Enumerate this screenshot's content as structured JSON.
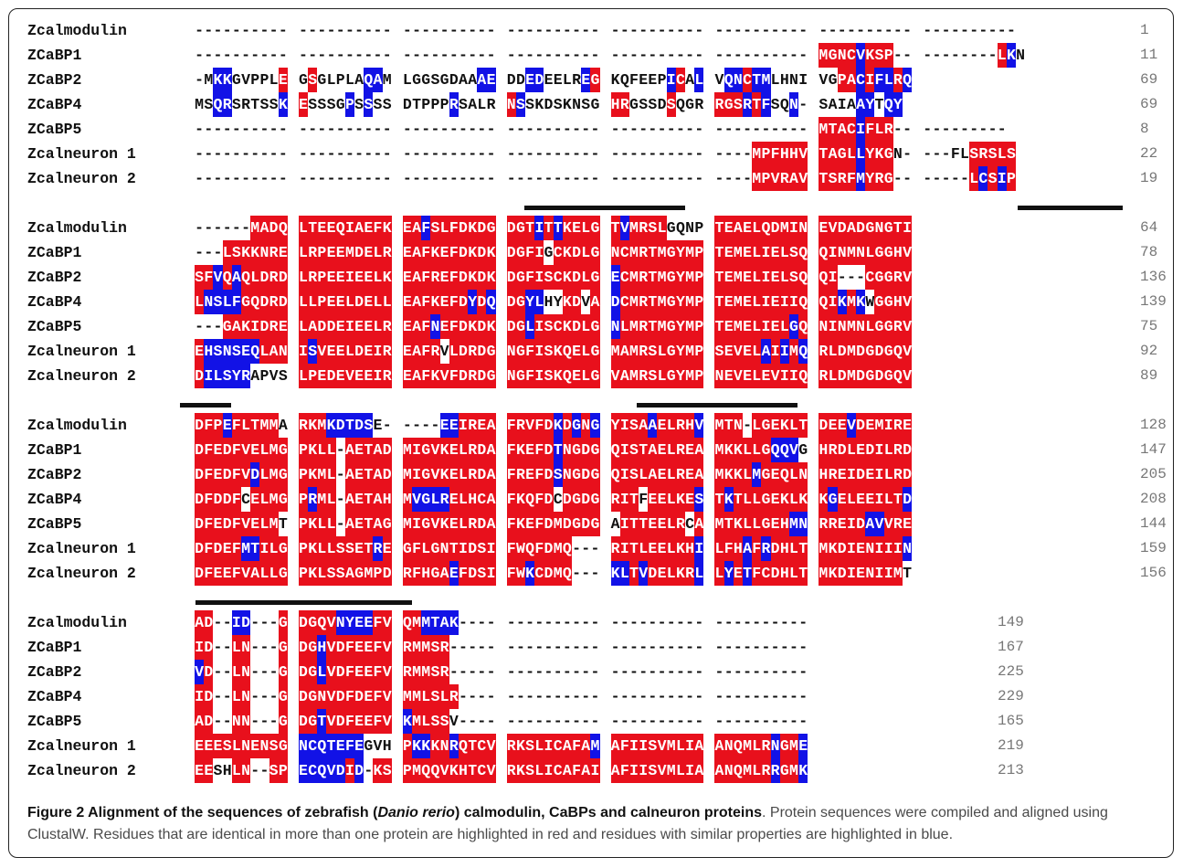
{
  "figure": {
    "caption_label": "Figure 2 Alignment of the sequences of zebrafish (",
    "caption_species": "Danio rerio",
    "caption_title_rest": ") calmodulin, CaBPs and calneuron proteins",
    "caption_body": ". Protein sequences were compiled and aligned using ClustalW. Residues that are identical in more than one protein are highlighted in red and residues with similar properties are highlighted in blue."
  },
  "colors": {
    "identical": "#e8101c",
    "similar": "#1212e6",
    "text": "#111111"
  },
  "alignment": {
    "blocks": [
      {
        "rows": [
          {
            "name": "Zcalmodulin",
            "seq": "---------- ---------- ---------- ---------- ---------- ---------- ---------- ----------",
            "mask": "0000000000 0000000000 0000000000 0000000000 0000000000 0000000000 0000000000 0000000000",
            "num": "1"
          },
          {
            "name": "ZCaBP1",
            "seq": "---------- ---------- ---------- ---------- ---------- ---------- MGNCVKSP-- --------LKN",
            "mask": "0000000000 0000000000 0000000000 0000000000 0000000000 0000000000 RRRRBRRR00 00000000RB",
            "num": "11"
          },
          {
            "name": "ZCaBP2",
            "seq": "-MKKGVPPLE GSGLPLAQAM LGGSGDAAAE DDEDEELREG KQFEEPICAL VQNCTMLHNI VGPACIFLRQ",
            "mask": "00BB00000R 0R00000BB0 00000000BB0 0BB0000BR0 00000BR0BR BBRBB00000 0RRBRBBRB0",
            "num": "69"
          },
          {
            "name": "ZCaBP4",
            "seq": "MSQRSRTSSK ESSSGPSSSS DTPPPRSALR NSSKDSKNSG HRGSSDSQGR RGSRTFSQN- SAIAAYTQY",
            "mask": "00BB00000B R0000B0B00 00000B0000 RB00000000 RR0000R000 RRRBRB00B0 0000BB0BB",
            "num": "69"
          },
          {
            "name": "ZCaBP5",
            "seq": "---------- ---------- ---------- ---------- ---------- ---------- MTACIFLR-- ---------",
            "mask": "0000000000 0000000000 0000000000 0000000000 0000000000 0000000000 RRRRBRRR00 000000000",
            "num": "8"
          },
          {
            "name": "Zcalneuron 1",
            "seq": "---------- ---------- ---------- ---------- ---------- ----MPFHHV TAGLLYKGN- ---FLSRSLS",
            "mask": "0000000000 0000000000 0000000000 0000000000 0000000000 0000RRRRRR RRRRBRRR00 00000RRRRR",
            "num": "22"
          },
          {
            "name": "Zcalneuron 2",
            "seq": "---------- ---------- ---------- ---------- ---------- ----MPVRAV TSRFMYRG-- -----LCSIP",
            "mask": "0000000000 0000000000 0000000000 0000000000 0000000000 0000RRRRRR RRRRBRRR00 00000RBRBR",
            "num": "19"
          }
        ]
      },
      {
        "rows": [
          {
            "name": "Zcalmodulin",
            "seq": "------MADQ LTEEQIAEFK EAFSLFDKDG DGTITTKELG TVMRSLGQNP TEAELQDMIN EVDADGNGTI",
            "mask": "000000RRRR RRRRRRRRRR RRBRRRRRRR RRRBRBRRRR RBRRRR0000 RRRRRRRRRR RRRRRRRRRR",
            "num": "64"
          },
          {
            "name": "ZCaBP1",
            "seq": "---LSKKNRE LRPEEMDELR EAFKEFDKDK DGFIGCKDLG NCMRTMGYMP TEMELIELSQ QINMNLGGHV",
            "mask": "000RRRRRRR RRRRRRRRRR RRRRRRRRRR RRRR0RRRRR RRRRRRRRRR RRRRRRRRRR RRRRRRRRRR",
            "num": "78"
          },
          {
            "name": "ZCaBP2",
            "seq": "SFVQAQLDRD LRPEEIEELK EAFREFDKDK DGFISCKDLG ECMRTMGYMP TEMELIELSQ QI---CGGRV",
            "mask": "RRBRBRRRRR RRRRRRRRRR RRRRRRRRRR RRRRRRRRRR BRRRRRRRRR RRRRRRRRRR RR000RRRRR",
            "num": "136"
          },
          {
            "name": "ZCaBP4",
            "seq": "LNSLFGQDRD LLPEELDELL EAFKEFDYDQ DGYLHYKDVA DCMRTMGYMP TEMELIEIIQ QIKMKWGGHV",
            "mask": "RBBBBRRRRR RRRRRRRRRR RRRRRRRBRB RRBB00RR0R BRRRRRRRRR RRRRRRRRRR RRBRB0RRRR",
            "num": "139"
          },
          {
            "name": "ZCaBP5",
            "seq": "---GAKIDRE LADDEIEELR EAFNEFDKDK DGLISCKDLG NLMRTMGYMP TEMELIELGQ NINMNLGGRV",
            "mask": "000RRRRRRR RRRRRRRRRR RRRBRRRRRR RRBRRRRRRR BRRRRRRRRR RRRRRRRRBR RRRRRRRRRR",
            "num": "75"
          },
          {
            "name": "Zcalneuron 1",
            "seq": "EHSNSEQLAN ISVEELDEIR EAFRVLDRDG NGFISKQELG MAMRSLGYMP SEVELAIIMQ RLDMDGDGQV",
            "mask": "RBBBBBBRRR RBRRRRRRRR RRRR0RRRRR RRRRRRRRRR RRRRRRRRRR RRRRRBRBRB RRRRRRRRRR",
            "num": "92"
          },
          {
            "name": "Zcalneuron 2",
            "seq": "DILSYRAPVS LPEDEVEEIR EAFKVFDRDG NGFISKQELG VAMRSLGYMP NEVELEVIIQ RLDMDGDGQV",
            "mask": "RBBBBB0000 RRRRRRRRRR RRRRRRRRRR RRRRRRRRRR RRRRRRRRRR RRRRRRRRRR RRRRRRRRRR",
            "num": "89"
          }
        ]
      },
      {
        "rows": [
          {
            "name": "Zcalmodulin",
            "seq": "DFPEFLTMMA RKMKDTDSE- ----EEIREA FRVFDKDGNG YISAAELRHV MTN-LGEKLT DEEVDEMIRE",
            "mask": "RRRBRRRRR0 RRRBBBBB00 0000BBRRRR RRRRRBRBRB RRRRBRRRRB RRR0RRRRRR RRRBRRRRRR",
            "num": "128"
          },
          {
            "name": "ZCaBP1",
            "seq": "DFEDFVELMG PKLL-AETAD MIGVKELRDA FKEFDTNGDG QISTAELREA MKKLLGQQVG HRDLEDILRD",
            "mask": "RRRRRRRRRR RRRR0RRRRR RRRRRRRRRR RRRRRBRRRR RRRRRRRRRR RRRRRRBBB0 RRRRRRRRRR",
            "num": "147"
          },
          {
            "name": "ZCaBP2",
            "seq": "DFEDFVDLMG PKML-AETAD MIGVKELRDA FREFDSNGDG QISLAELREA MKKLMGEQLN HREIDEILRD",
            "mask": "RRRRRRBRRR RRRR0RRRRR RRRRRRRRRR RRRRRBRRRR RRRRRRRRRR RRRRBRRRRR RRRRRRRRRR",
            "num": "205"
          },
          {
            "name": "ZCaBP4",
            "seq": "DFDDFCELMG PRML-AETAH MVGLRELHCA FKQFDCDGDG RITFEELKES TKTLLGEKLK KGELEEILTD",
            "mask": "RRRRR0RRRR RBRR0RRRRR RBBBBRRRRR RRRRR0RRRR RRR0RRRRRB RBRRRRRRRR RBRRRRRRRB",
            "num": "208"
          },
          {
            "name": "ZCaBP5",
            "seq": "DFEDFVELMT PKLL-AETAG MIGVKELRDA FKEFDMDGDG AITTEELRCA MTKLLGEHMN RREIDAVVRE",
            "mask": "RRRRRRRRR0 RRRR0RRRRR RRRRRRRRRR RRRRRRRRRR 0RRRRRRR0R RRRRRRRRBB RRRRRBBRRR",
            "num": "144"
          },
          {
            "name": "Zcalneuron 1",
            "seq": "DFDEFMTILG PKLLSSETRE GFLGNTIDSI FWQFDMQ--- RITLEELKHI LFHAFRDHLT MKDIENIIIN",
            "mask": "RRRRRBBRRR RRRRRRRRBR RRRRRRRRRR RRRRRRR000 RRRRRRRRRB RRRBRBRRRR RRRRRRRRRB",
            "num": "159"
          },
          {
            "name": "Zcalneuron 2",
            "seq": "DFEEFVALLG PKLSSAGMPD RFHGAEFDSI FWKCDMQ--- KLTVDELKRL LYETFCDHLT MKDIENIIMT",
            "mask": "RRRRRRRRRR RRRRRRRRRR RRRRRBRRRR RRBRRRR000 BBRBRRRRRB RBRBRRRRRR RRRRRRRRR0",
            "num": "156"
          }
        ]
      },
      {
        "rows": [
          {
            "name": "Zcalmodulin",
            "seq": "AD--ID---G DGQVNYEEFV QMMTAK---- ---------- ---------- ----------",
            "mask": "RR00BB000R RRRRBBBBRR RRBBBB0000 0000000000 0000000000 0000000000",
            "num": "149"
          },
          {
            "name": "ZCaBP1",
            "seq": "ID--LN---G DGHVDFEEFV RMMSR----- ---------- ---------- ----------",
            "mask": "RR00RR000R RRBRRRRRRR RRRRR00000 0000000000 0000000000 0000000000",
            "num": "167"
          },
          {
            "name": "ZCaBP2",
            "seq": "VD--LN---G DGLVDFEEFV RMMSR----- ---------- ---------- ----------",
            "mask": "BR00RR000R RRBRRRRRRR RRRRR00000 0000000000 0000000000 0000000000",
            "num": "225"
          },
          {
            "name": "ZCaBP4",
            "seq": "ID--LN---G DGNVDFDEFV MMLSLR---- ---------- ---------- ----------",
            "mask": "RR00RR000R RRRRRRRRRR RRRRRR0000 0000000000 0000000000 0000000000",
            "num": "229"
          },
          {
            "name": "ZCaBP5",
            "seq": "AD--NN---G DGTVDFEEFV KMLSSV---- ---------- ---------- ----------",
            "mask": "RR00RR000R RRBRRRRRRR BRRRR00000 0000000000 0000000000 0000000000",
            "num": "165"
          },
          {
            "name": "Zcalneuron 1",
            "seq": "EEESLNENSG NCQTEFEGVH PKKKNRQTCV RKSLICAFAM AFIISVMLIA ANQMLRNGME",
            "mask": "RRRRRRRRRR BBBBBBB000 RBBRRBRRRR RRRRRRRRRB RRRRRRRRRR RRRRRRBRRB",
            "num": "219"
          },
          {
            "name": "Zcalneuron 2",
            "seq": "EESHLN--SP ECQVDID-KS PMQQVKHTCV RKSLICAFAI AFIISVMLIA ANQMLRRGMK",
            "mask": "RR00RR00RR BBBBBRB0RR RRRRRRRRRR RRRRRRRRRR RRRRRRRRRR RRRRRRBRRB",
            "num": "213"
          }
        ]
      }
    ]
  }
}
